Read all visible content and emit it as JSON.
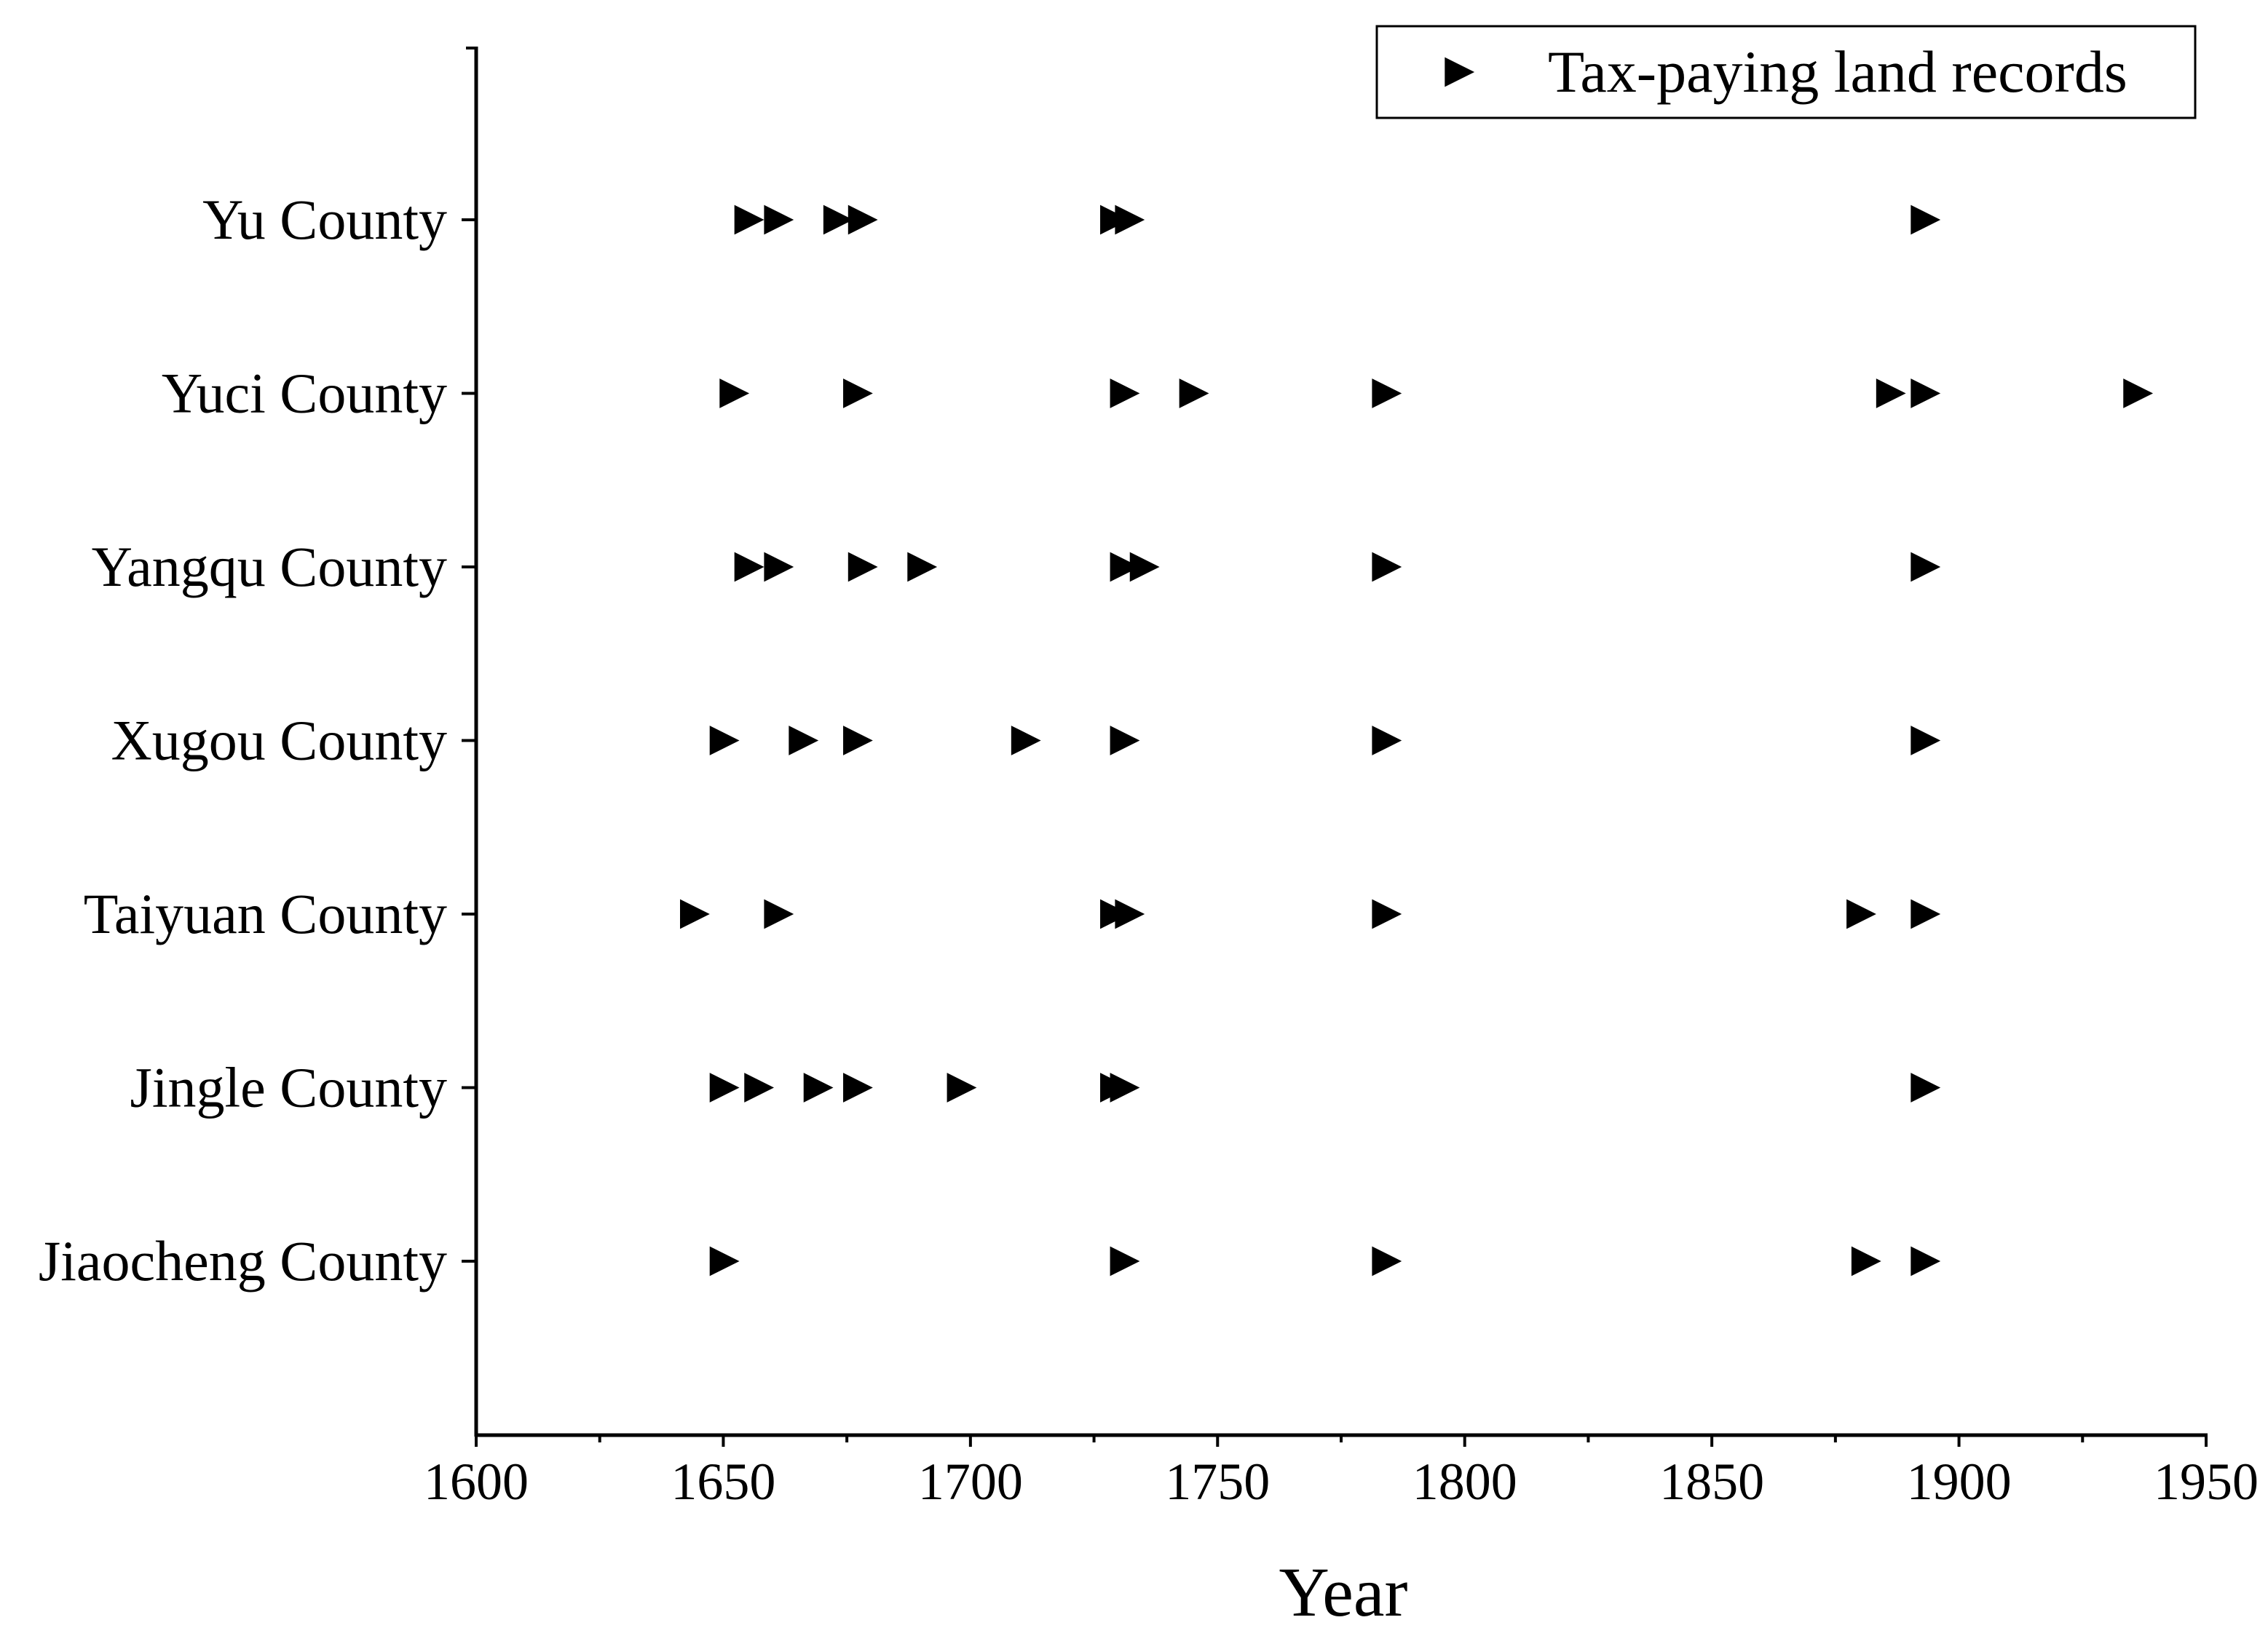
{
  "chart_data": {
    "type": "scatter",
    "xlabel": "Year",
    "ylabel": "",
    "title": "",
    "xlim": [
      1600,
      1950
    ],
    "x_ticks": [
      1600,
      1650,
      1700,
      1750,
      1800,
      1850,
      1900,
      1950
    ],
    "x_minor_ticks": true,
    "marker": "right-triangle",
    "marker_color": "#000000",
    "grid": false,
    "legend_position": "top-right",
    "categories": [
      "Yu County",
      "Yuci County",
      "Yangqu County",
      "Xugou County",
      "Taiyuan County",
      "Jingle County",
      "Jiaocheng County"
    ],
    "series": [
      {
        "name": "Tax-paying land records",
        "points": [
          {
            "category": "Yu County",
            "years": [
              1655,
              1661,
              1673,
              1678,
              1729,
              1732,
              1893
            ]
          },
          {
            "category": "Yuci County",
            "years": [
              1652,
              1677,
              1731,
              1745,
              1784,
              1886,
              1893,
              1936
            ]
          },
          {
            "category": "Yangqu County",
            "years": [
              1655,
              1661,
              1678,
              1690,
              1731,
              1735,
              1784,
              1893
            ]
          },
          {
            "category": "Xugou County",
            "years": [
              1650,
              1666,
              1677,
              1711,
              1731,
              1784,
              1893
            ]
          },
          {
            "category": "Taiyuan County",
            "years": [
              1644,
              1661,
              1729,
              1732,
              1784,
              1880,
              1893
            ]
          },
          {
            "category": "Jingle County",
            "years": [
              1650,
              1657,
              1669,
              1677,
              1698,
              1729,
              1731,
              1893
            ]
          },
          {
            "category": "Jiaocheng County",
            "years": [
              1650,
              1731,
              1784,
              1881,
              1893
            ]
          }
        ]
      }
    ]
  }
}
